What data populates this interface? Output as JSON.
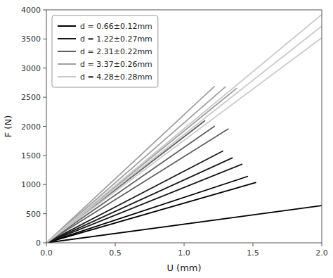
{
  "chart_data": {
    "type": "line",
    "xlabel": "U (mm)",
    "ylabel": "F (N)",
    "xlim": [
      0,
      2.0
    ],
    "ylim": [
      0,
      4000
    ],
    "xticks": [
      {
        "value": 0,
        "label": "0.0"
      },
      0.5,
      {
        "value": 1,
        "label": "1.0"
      },
      1.5,
      {
        "value": 2,
        "label": "2.0"
      }
    ],
    "yticks": [
      0,
      500,
      1000,
      1500,
      2000,
      2500,
      3000,
      3500,
      4000
    ],
    "grid": false,
    "legend": "upper left",
    "series": [
      {
        "name": "d = 0.66±0.12mm",
        "color": "#000000",
        "lines": [
          {
            "x": [
              0,
              2.0
            ],
            "values": [
              0,
              640
            ]
          },
          {
            "x": [
              0,
              1.52
            ],
            "values": [
              0,
              1033.6
            ]
          },
          {
            "x": [
              0,
              1.46
            ],
            "values": [
              0,
              1138.8
            ]
          }
        ]
      },
      {
        "name": "d = 1.22±0.27mm",
        "color": "#1a1a1a",
        "lines": [
          {
            "x": [
              0,
              1.42
            ],
            "values": [
              0,
              1349
            ]
          },
          {
            "x": [
              0,
              1.35
            ],
            "values": [
              0,
              1458
            ]
          },
          {
            "x": [
              0,
              1.28
            ],
            "values": [
              0,
              1574.4
            ]
          }
        ]
      },
      {
        "name": "d = 2.31±0.22mm",
        "color": "#606060",
        "lines": [
          {
            "x": [
              0,
              1.32
            ],
            "values": [
              0,
              1953.6
            ]
          },
          {
            "x": [
              0,
              1.22
            ],
            "values": [
              0,
              2000.8
            ]
          },
          {
            "x": [
              0,
              1.15
            ],
            "values": [
              0,
              2093
            ]
          }
        ]
      },
      {
        "name": "d = 3.37±0.26mm",
        "color": "#a0a0a0",
        "lines": [
          {
            "x": [
              0,
              1.38
            ],
            "values": [
              0,
              2649.6
            ]
          },
          {
            "x": [
              0,
              1.3
            ],
            "values": [
              0,
              2678
            ]
          },
          {
            "x": [
              0,
              1.22
            ],
            "values": [
              0,
              2684
            ]
          }
        ]
      },
      {
        "name": "d = 4.28±0.28mm",
        "color": "#c8c8c8",
        "lines": [
          {
            "x": [
              0,
              2.0
            ],
            "values": [
              0,
              3520
            ]
          },
          {
            "x": [
              0,
              2.0
            ],
            "values": [
              0,
              3720
            ]
          },
          {
            "x": [
              0,
              2.0
            ],
            "values": [
              0,
              3920
            ]
          }
        ]
      }
    ]
  }
}
